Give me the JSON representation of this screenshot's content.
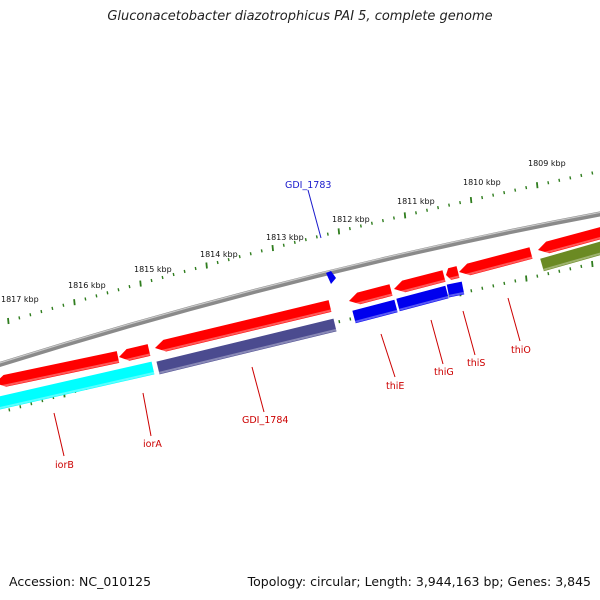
{
  "title": "Gluconacetobacter diazotrophicus PAI 5, complete genome",
  "footer": {
    "accession": "Accession: NC_010125",
    "stats": "Topology: circular; Length: 3,944,163 bp; Genes: 3,845"
  },
  "colors": {
    "backbone": "#808080",
    "ticks": "#2f7d1e",
    "label_red": "#cc0000",
    "label_blue": "#1a1acc",
    "gene_red": "#ff0000",
    "gene_blue": "#0000ee",
    "gene_cyan": "#00ffff",
    "gene_slate": "#4b4b8f",
    "gene_olive": "#6b8a23"
  },
  "scale_labels": [
    "1817 kbp",
    "1816 kbp",
    "1815 kbp",
    "1814 kbp",
    "1813 kbp",
    "1812 kbp",
    "1811 kbp",
    "1810 kbp",
    "1809 kbp"
  ],
  "gene_labels": [
    {
      "text": "iorB",
      "color": "red"
    },
    {
      "text": "iorA",
      "color": "red"
    },
    {
      "text": "GDI_1784",
      "color": "red"
    },
    {
      "text": "thiE",
      "color": "red"
    },
    {
      "text": "thiG",
      "color": "red"
    },
    {
      "text": "thiS",
      "color": "red"
    },
    {
      "text": "thiO",
      "color": "red"
    },
    {
      "text": "GDI_1783",
      "color": "blue"
    }
  ]
}
